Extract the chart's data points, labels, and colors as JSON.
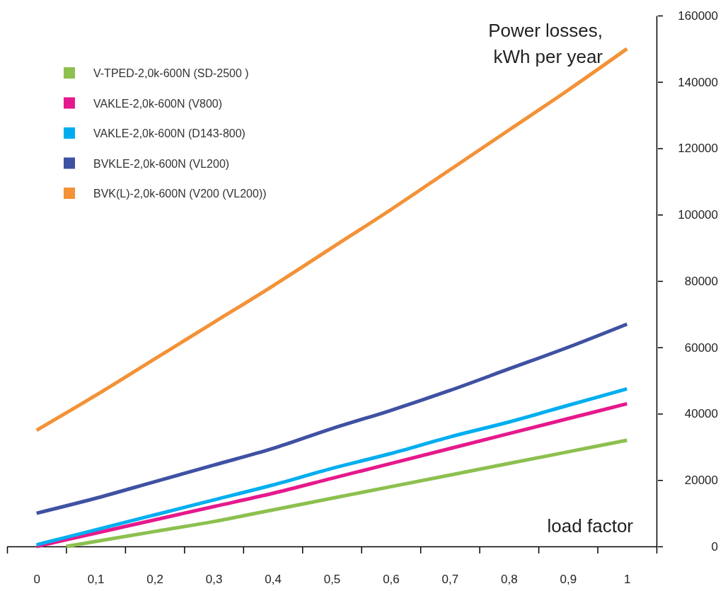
{
  "chart_data": {
    "type": "line",
    "ylabel": "Power losses, kWh per year",
    "xlabel": "load factor",
    "xlim": [
      -0.05,
      1.05
    ],
    "xticks": [
      {
        "value": -0.05,
        "label": null
      },
      {
        "value": 0,
        "label": "0"
      },
      {
        "value": 0.05,
        "label": null
      },
      {
        "value": 0.1,
        "label": "0,1"
      },
      {
        "value": 0.15,
        "label": null
      },
      {
        "value": 0.2,
        "label": "0,2"
      },
      {
        "value": 0.25,
        "label": null
      },
      {
        "value": 0.3,
        "label": "0,3"
      },
      {
        "value": 0.35,
        "label": null
      },
      {
        "value": 0.4,
        "label": "0,4"
      },
      {
        "value": 0.45,
        "label": null
      },
      {
        "value": 0.5,
        "label": "0,5"
      },
      {
        "value": 0.55,
        "label": null
      },
      {
        "value": 0.6,
        "label": "0,6"
      },
      {
        "value": 0.65,
        "label": null
      },
      {
        "value": 0.7,
        "label": "0,7"
      },
      {
        "value": 0.75,
        "label": null
      },
      {
        "value": 0.8,
        "label": "0,8"
      },
      {
        "value": 0.85,
        "label": null
      },
      {
        "value": 0.9,
        "label": "0,9"
      },
      {
        "value": 0.95,
        "label": null
      },
      {
        "value": 1,
        "label": "1"
      },
      {
        "value": 1.05,
        "label": null
      }
    ],
    "ylim": [
      0,
      160000
    ],
    "yticks": [
      0,
      20000,
      40000,
      60000,
      80000,
      100000,
      120000,
      140000,
      160000
    ],
    "x": [
      0,
      0.1,
      0.2,
      0.3,
      0.4,
      0.5,
      0.6,
      0.7,
      0.8,
      0.9,
      1
    ],
    "grid": false,
    "legend": "top left",
    "marker": "none",
    "line_style": "solid",
    "series": [
      {
        "name": "V-TPED-2,0k-600N (SD-2500 )",
        "color": "#8dc04f",
        "x": [
          0.05,
          0.1,
          0.2,
          0.3,
          0.4,
          0.5,
          0.6,
          0.7,
          0.8,
          0.9,
          1
        ],
        "values": [
          0,
          1500,
          4500,
          7500,
          11000,
          14500,
          18000,
          21500,
          25000,
          28500,
          32000
        ]
      },
      {
        "name": "VAKLE-2,0k-600N (V800)",
        "color": "#e6198c",
        "values": [
          0,
          4000,
          8000,
          12000,
          16000,
          20500,
          25000,
          29500,
          34000,
          38500,
          43000
        ]
      },
      {
        "name": "VAKLE-2,0k-600N (D143-800)",
        "color": "#00aeef",
        "values": [
          500,
          5000,
          9500,
          14000,
          18500,
          23500,
          28000,
          33000,
          37500,
          42500,
          47500
        ]
      },
      {
        "name": "BVKLE-2,0k-600N (VL200)",
        "color": "#3f51a2",
        "values": [
          10000,
          14500,
          19500,
          24500,
          29500,
          35500,
          41000,
          47000,
          53500,
          60000,
          67000
        ]
      },
      {
        "name": "BVK(L)-2,0k-600N (V200 (VL200))",
        "color": "#f39237",
        "values": [
          35000,
          45500,
          56500,
          67500,
          78500,
          90000,
          101500,
          113500,
          125500,
          137500,
          150000
        ]
      }
    ]
  }
}
